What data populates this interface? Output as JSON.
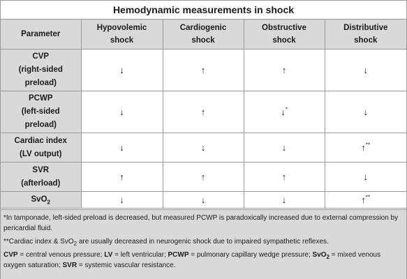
{
  "title": "Hemodynamic measurements in shock",
  "headers": [
    "Parameter",
    "Hypovolemic shock",
    "Cardiogenic shock",
    "Obstructive shock",
    "Distributive shock"
  ],
  "rows": [
    {
      "param_line1": "CVP",
      "param_line2": "(right-sided",
      "param_line3": "preload)",
      "values": [
        "↓",
        "↑",
        "↑",
        "↓"
      ],
      "marks": [
        "",
        "",
        "",
        ""
      ]
    },
    {
      "param_line1": "PCWP",
      "param_line2": "(left-sided",
      "param_line3": "preload)",
      "values": [
        "↓",
        "↑",
        "↓",
        "↓"
      ],
      "marks": [
        "",
        "",
        "*",
        ""
      ]
    },
    {
      "param_line1": "Cardiac index",
      "param_line2": "(LV output)",
      "param_line3": "",
      "values": [
        "↓",
        "↓",
        "↓",
        "↑"
      ],
      "marks": [
        "",
        "",
        "",
        "**"
      ]
    },
    {
      "param_line1": "SVR",
      "param_line2": "(afterload)",
      "param_line3": "",
      "values": [
        "↑",
        "↑",
        "↑",
        "↓"
      ],
      "marks": [
        "",
        "",
        "",
        ""
      ]
    },
    {
      "param_line1": "SvO",
      "param_sub": "2",
      "param_line2": "",
      "param_line3": "",
      "values": [
        "↓",
        "↓",
        "↓",
        "↑"
      ],
      "marks": [
        "",
        "",
        "",
        "**"
      ]
    }
  ],
  "notes": {
    "note1": "*In tamponade, left-sided preload is decreased, but measured PCWP is paradoxically increased due to external compression by pericardial fluid.",
    "note2_a": "**Cardiac index & SvO",
    "note2_sub": "2",
    "note2_b": " are usually decreased in neurogenic shock due to impaired sympathetic reflexes.",
    "abbr": [
      {
        "term": "CVP",
        "def": " = central venous pressure; "
      },
      {
        "term": "LV",
        "def": " = left ventricular; "
      },
      {
        "term": "PCWP",
        "def": " = pulmonary capillary wedge pressure; "
      },
      {
        "term": "SvO",
        "sub": "2",
        "def": " = mixed venous oxygen saturation; "
      },
      {
        "term": "SVR",
        "def": " = systemic vascular resistance."
      }
    ]
  }
}
